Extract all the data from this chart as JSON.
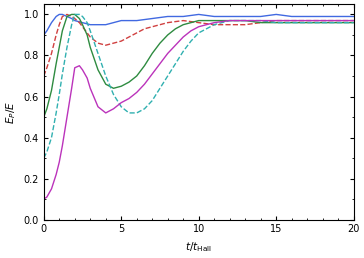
{
  "title": "",
  "xlabel": "t/t_{Hall}",
  "ylabel": "E_P/E",
  "xlim": [
    0,
    20
  ],
  "ylim": [
    0.0,
    1.05
  ],
  "yticks": [
    0.0,
    0.2,
    0.4,
    0.6,
    0.8,
    1.0
  ],
  "xticks": [
    0,
    5,
    10,
    15,
    20
  ],
  "lines": [
    {
      "color": "#4169e1",
      "linestyle": "solid",
      "linewidth": 1.0,
      "label": "blue_solid",
      "x": [
        0,
        0.2,
        0.5,
        0.8,
        1.0,
        1.2,
        1.5,
        1.8,
        2.0,
        2.5,
        3.0,
        3.5,
        4.0,
        4.5,
        5.0,
        5.5,
        6.0,
        7.0,
        8.0,
        9.0,
        10.0,
        11.0,
        12.0,
        13.0,
        14.0,
        15.0,
        16.0,
        17.0,
        18.0,
        19.0,
        20.0
      ],
      "y": [
        0.9,
        0.92,
        0.96,
        0.99,
        1.0,
        1.0,
        0.99,
        0.98,
        0.97,
        0.96,
        0.95,
        0.95,
        0.95,
        0.96,
        0.97,
        0.97,
        0.97,
        0.98,
        0.99,
        0.99,
        1.0,
        0.99,
        0.99,
        0.99,
        0.99,
        1.0,
        0.99,
        0.99,
        0.99,
        0.99,
        0.99
      ]
    },
    {
      "color": "#d04040",
      "linestyle": "dashed",
      "linewidth": 1.0,
      "label": "red_dashed",
      "x": [
        0,
        0.2,
        0.5,
        0.8,
        1.0,
        1.2,
        1.5,
        1.8,
        2.0,
        2.3,
        2.5,
        3.0,
        3.5,
        4.0,
        4.5,
        5.0,
        5.5,
        6.0,
        6.5,
        7.0,
        7.5,
        8.0,
        9.0,
        10.0,
        11.0,
        12.0,
        13.0,
        14.0,
        15.0,
        16.0,
        17.0,
        18.0,
        19.0,
        20.0
      ],
      "y": [
        0.7,
        0.74,
        0.81,
        0.9,
        0.95,
        0.99,
        1.0,
        0.99,
        0.98,
        0.96,
        0.94,
        0.89,
        0.86,
        0.85,
        0.86,
        0.87,
        0.89,
        0.91,
        0.93,
        0.94,
        0.95,
        0.96,
        0.97,
        0.96,
        0.95,
        0.95,
        0.95,
        0.96,
        0.97,
        0.97,
        0.97,
        0.97,
        0.97,
        0.97
      ]
    },
    {
      "color": "#2e8b40",
      "linestyle": "solid",
      "linewidth": 1.0,
      "label": "green_solid",
      "x": [
        0,
        0.2,
        0.5,
        0.8,
        1.0,
        1.2,
        1.5,
        1.8,
        2.0,
        2.3,
        2.5,
        2.8,
        3.0,
        3.5,
        4.0,
        4.5,
        5.0,
        5.5,
        6.0,
        6.5,
        7.0,
        7.5,
        8.0,
        8.5,
        9.0,
        10.0,
        11.0,
        12.0,
        13.0,
        14.0,
        15.0,
        16.0,
        17.0,
        18.0,
        19.0,
        20.0
      ],
      "y": [
        0.5,
        0.54,
        0.63,
        0.76,
        0.84,
        0.92,
        0.99,
        1.0,
        1.0,
        0.98,
        0.95,
        0.9,
        0.84,
        0.73,
        0.66,
        0.64,
        0.65,
        0.67,
        0.7,
        0.75,
        0.81,
        0.86,
        0.9,
        0.93,
        0.95,
        0.97,
        0.97,
        0.97,
        0.97,
        0.96,
        0.96,
        0.96,
        0.96,
        0.96,
        0.96,
        0.96
      ]
    },
    {
      "color": "#30b0b0",
      "linestyle": "dashed",
      "linewidth": 1.0,
      "label": "cyan_dashed",
      "x": [
        0,
        0.2,
        0.5,
        0.8,
        1.0,
        1.2,
        1.5,
        1.8,
        2.0,
        2.3,
        2.5,
        2.8,
        3.0,
        3.5,
        4.0,
        4.5,
        5.0,
        5.5,
        6.0,
        6.5,
        7.0,
        7.5,
        8.0,
        8.5,
        9.0,
        9.5,
        10.0,
        11.0,
        12.0,
        13.0,
        14.0,
        15.0,
        16.0,
        17.0,
        18.0,
        19.0,
        20.0
      ],
      "y": [
        0.3,
        0.33,
        0.4,
        0.52,
        0.61,
        0.71,
        0.84,
        0.95,
        1.0,
        1.0,
        0.99,
        0.96,
        0.92,
        0.81,
        0.7,
        0.61,
        0.55,
        0.52,
        0.52,
        0.54,
        0.58,
        0.64,
        0.7,
        0.76,
        0.82,
        0.87,
        0.91,
        0.95,
        0.97,
        0.97,
        0.97,
        0.96,
        0.96,
        0.96,
        0.96,
        0.96,
        0.96
      ]
    },
    {
      "color": "#bb33bb",
      "linestyle": "solid",
      "linewidth": 1.0,
      "label": "magenta_solid",
      "x": [
        0,
        0.2,
        0.5,
        0.8,
        1.0,
        1.2,
        1.5,
        1.8,
        2.0,
        2.3,
        2.5,
        2.8,
        3.0,
        3.5,
        4.0,
        4.5,
        5.0,
        5.5,
        6.0,
        6.5,
        7.0,
        7.5,
        8.0,
        8.5,
        9.0,
        9.5,
        10.0,
        11.0,
        12.0,
        13.0,
        14.0,
        15.0,
        16.0,
        17.0,
        18.0,
        19.0,
        20.0
      ],
      "y": [
        0.1,
        0.11,
        0.15,
        0.22,
        0.28,
        0.36,
        0.5,
        0.64,
        0.74,
        0.75,
        0.73,
        0.69,
        0.64,
        0.55,
        0.52,
        0.54,
        0.57,
        0.59,
        0.62,
        0.66,
        0.71,
        0.76,
        0.81,
        0.85,
        0.89,
        0.92,
        0.94,
        0.96,
        0.97,
        0.97,
        0.97,
        0.97,
        0.97,
        0.97,
        0.97,
        0.97,
        0.97
      ]
    }
  ],
  "figsize": [
    3.64,
    2.58
  ],
  "dpi": 100
}
